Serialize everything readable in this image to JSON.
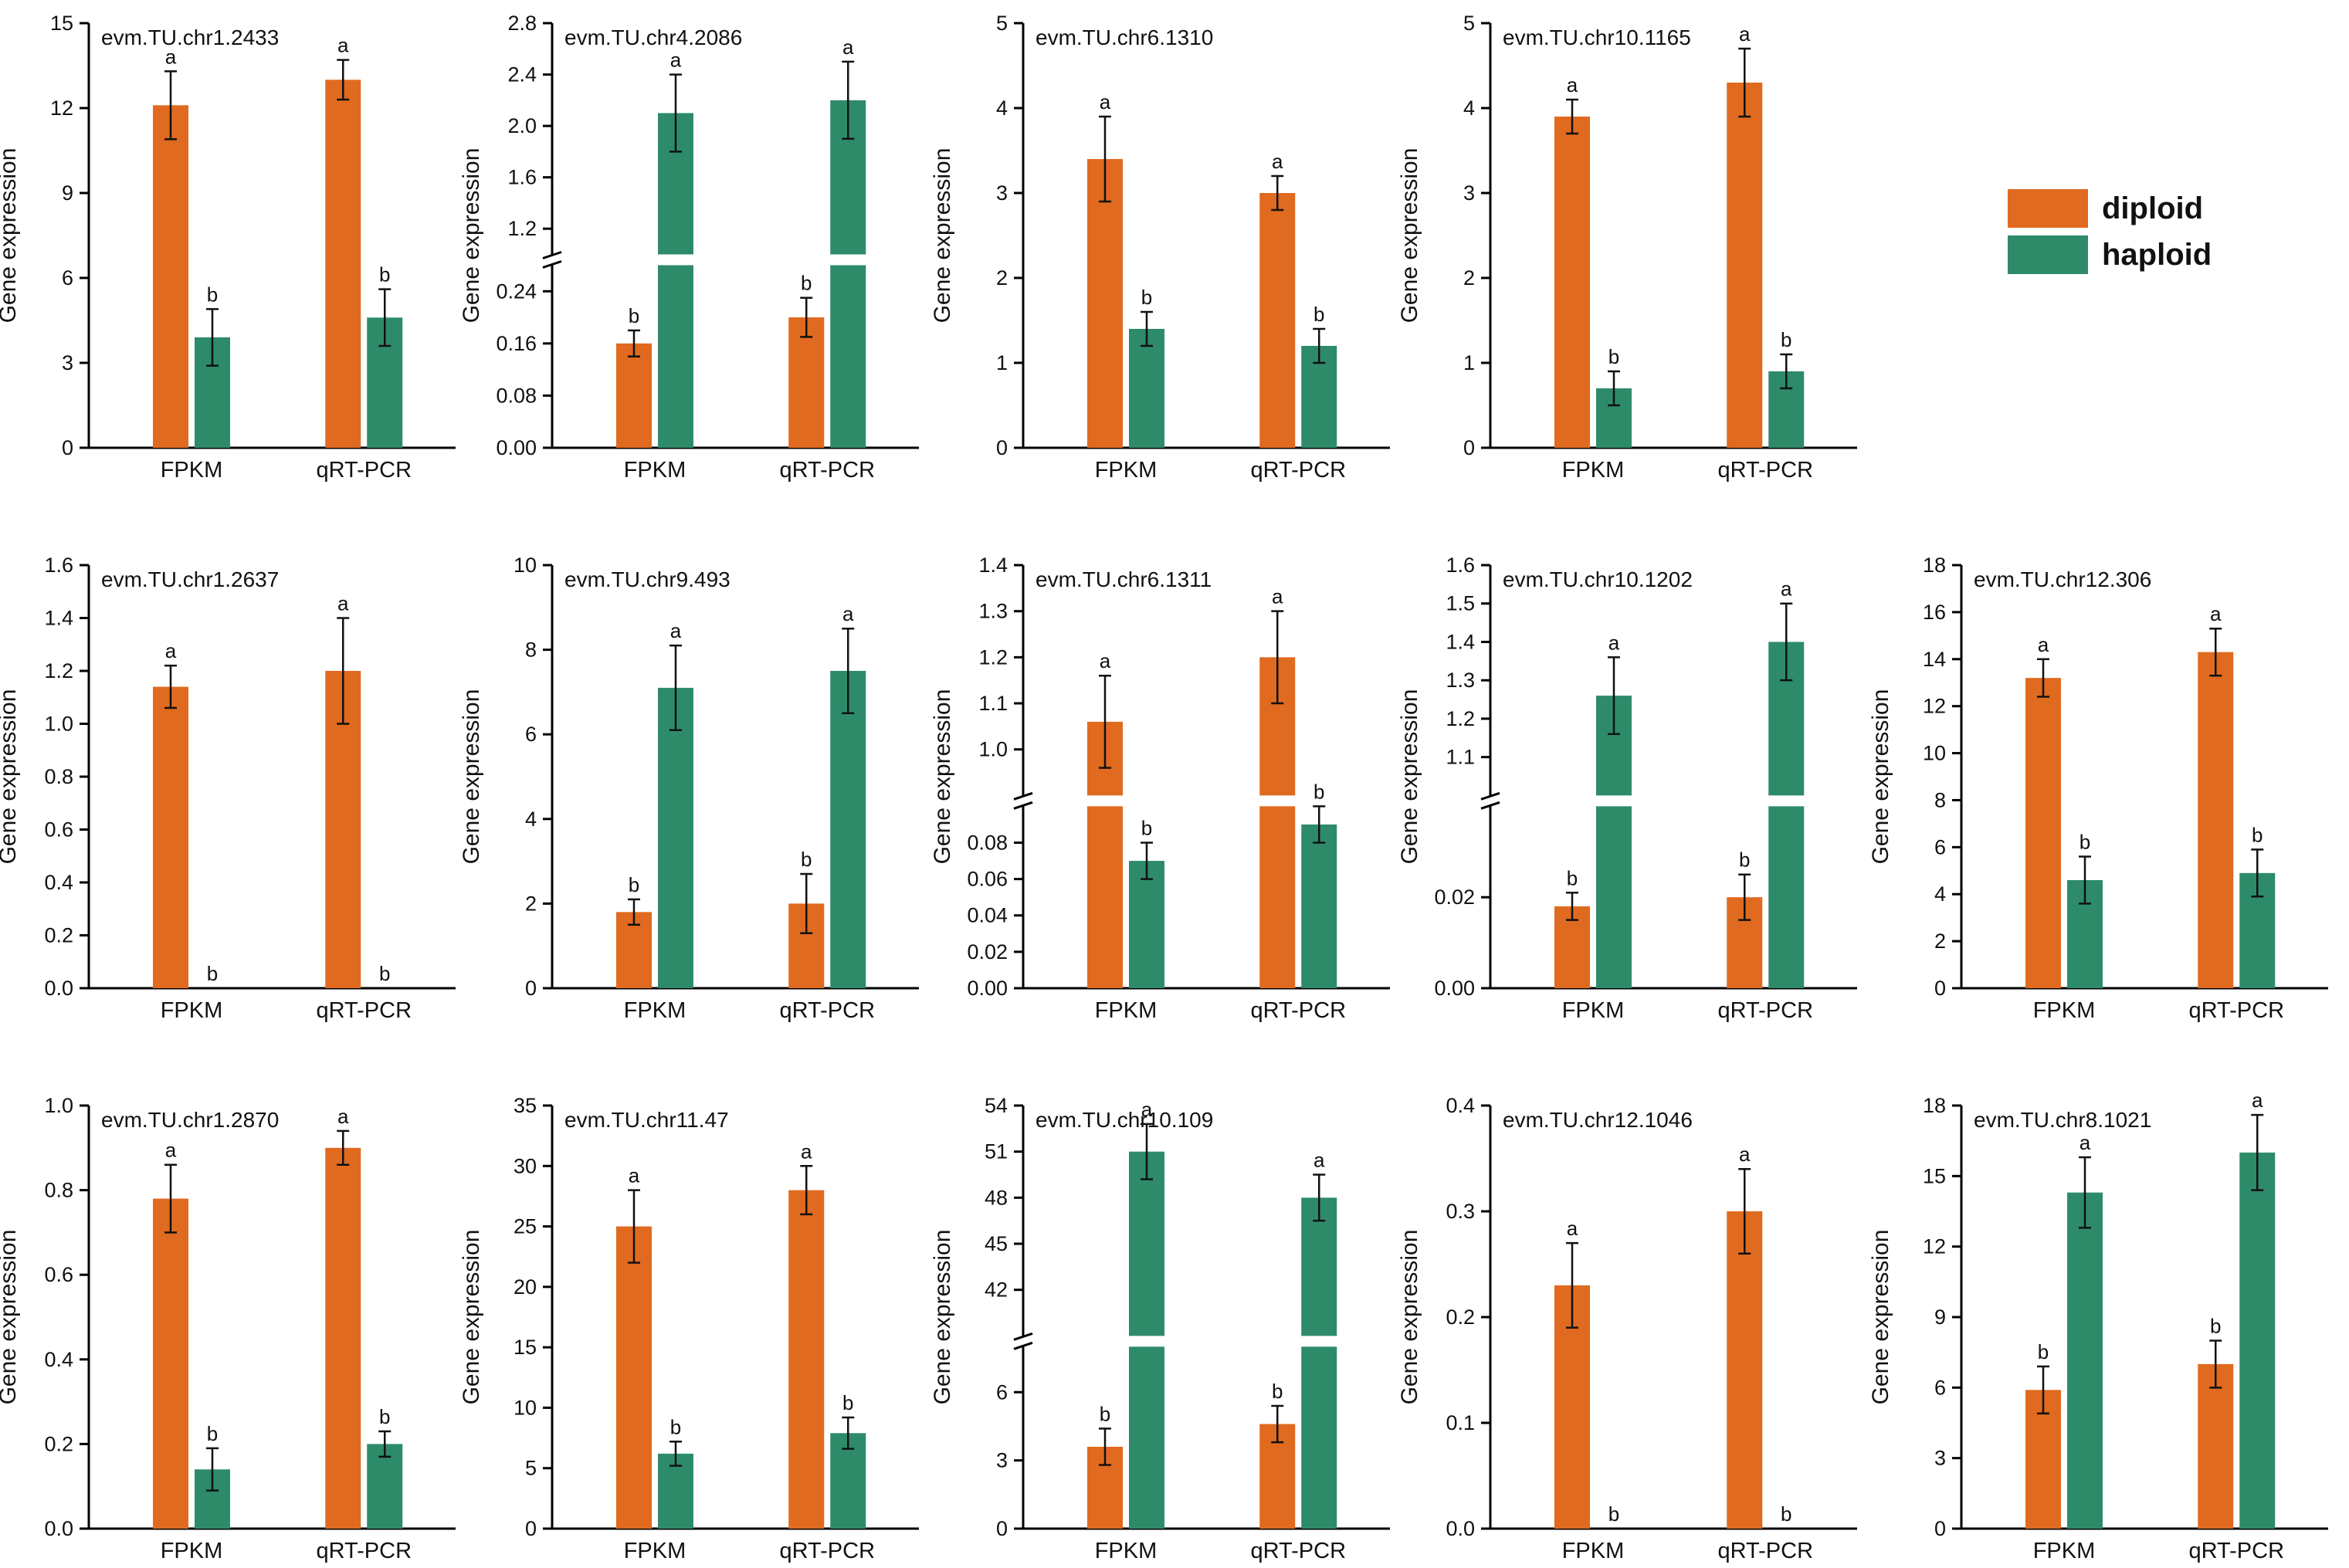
{
  "ylabel": "Gene expression",
  "categories": [
    "FPKM",
    "qRT-PCR"
  ],
  "legend": [
    {
      "key": "diploid",
      "label": "diploid",
      "color": "#E06A1F"
    },
    {
      "key": "haploid",
      "label": "haploid",
      "color": "#2E8B6A"
    }
  ],
  "chart_data": [
    {
      "type": "bar",
      "title": "evm.TU.chr1.2433",
      "ylabel": "Gene expression",
      "categories": [
        "FPKM",
        "qRT-PCR"
      ],
      "ylim": [
        0,
        15
      ],
      "yticks": [
        "0",
        "3",
        "6",
        "9",
        "12",
        "15"
      ],
      "series": [
        {
          "name": "diploid",
          "values": [
            12.1,
            13.0
          ],
          "errors": [
            1.2,
            0.7
          ],
          "letters": [
            "a",
            "a"
          ]
        },
        {
          "name": "haploid",
          "values": [
            3.9,
            4.6
          ],
          "errors": [
            1.0,
            1.0
          ],
          "letters": [
            "b",
            "b"
          ]
        }
      ]
    },
    {
      "type": "bar",
      "title": "evm.TU.chr4.2086",
      "ylabel": "Gene expression",
      "categories": [
        "FPKM",
        "qRT-PCR"
      ],
      "broken": {
        "lower_range": [
          0,
          0.28
        ],
        "lower_ticks": [
          "0.00",
          "0.08",
          "0.16",
          "0.24"
        ],
        "upper_range": [
          1.0,
          2.8
        ],
        "upper_ticks": [
          "1.2",
          "1.6",
          "2.0",
          "2.4",
          "2.8"
        ]
      },
      "series": [
        {
          "name": "diploid",
          "values": [
            0.16,
            0.2
          ],
          "errors": [
            0.02,
            0.03
          ],
          "letters": [
            "b",
            "b"
          ]
        },
        {
          "name": "haploid",
          "values": [
            2.1,
            2.2
          ],
          "errors": [
            0.3,
            0.3
          ],
          "letters": [
            "a",
            "a"
          ]
        }
      ]
    },
    {
      "type": "bar",
      "title": "evm.TU.chr6.1310",
      "ylabel": "Gene expression",
      "categories": [
        "FPKM",
        "qRT-PCR"
      ],
      "ylim": [
        0,
        5
      ],
      "yticks": [
        "0",
        "1",
        "2",
        "3",
        "4",
        "5"
      ],
      "series": [
        {
          "name": "diploid",
          "values": [
            3.4,
            3.0
          ],
          "errors": [
            0.5,
            0.2
          ],
          "letters": [
            "a",
            "a"
          ]
        },
        {
          "name": "haploid",
          "values": [
            1.4,
            1.2
          ],
          "errors": [
            0.2,
            0.2
          ],
          "letters": [
            "b",
            "b"
          ]
        }
      ]
    },
    {
      "type": "bar",
      "title": "evm.TU.chr10.1165",
      "ylabel": "Gene expression",
      "categories": [
        "FPKM",
        "qRT-PCR"
      ],
      "ylim": [
        0,
        5
      ],
      "yticks": [
        "0",
        "1",
        "2",
        "3",
        "4",
        "5"
      ],
      "series": [
        {
          "name": "diploid",
          "values": [
            3.9,
            4.3
          ],
          "errors": [
            0.2,
            0.4
          ],
          "letters": [
            "a",
            "a"
          ]
        },
        {
          "name": "haploid",
          "values": [
            0.7,
            0.9
          ],
          "errors": [
            0.2,
            0.2
          ],
          "letters": [
            "b",
            "b"
          ]
        }
      ]
    },
    {
      "type": "bar",
      "title": "evm.TU.chr1.2637",
      "ylabel": "Gene expression",
      "categories": [
        "FPKM",
        "qRT-PCR"
      ],
      "ylim": [
        0,
        1.6
      ],
      "yticks": [
        "0.0",
        "0.2",
        "0.4",
        "0.6",
        "0.8",
        "1.0",
        "1.2",
        "1.4",
        "1.6"
      ],
      "series": [
        {
          "name": "diploid",
          "values": [
            1.14,
            1.2
          ],
          "errors": [
            0.08,
            0.2
          ],
          "letters": [
            "a",
            "a"
          ]
        },
        {
          "name": "haploid",
          "values": [
            0,
            0
          ],
          "errors": [
            0,
            0
          ],
          "letters": [
            "b",
            "b"
          ]
        }
      ]
    },
    {
      "type": "bar",
      "title": "evm.TU.chr9.493",
      "ylabel": "Gene expression",
      "categories": [
        "FPKM",
        "qRT-PCR"
      ],
      "ylim": [
        0,
        10
      ],
      "yticks": [
        "0",
        "2",
        "4",
        "6",
        "8",
        "10"
      ],
      "series": [
        {
          "name": "diploid",
          "values": [
            1.8,
            2.0
          ],
          "errors": [
            0.3,
            0.7
          ],
          "letters": [
            "b",
            "b"
          ]
        },
        {
          "name": "haploid",
          "values": [
            7.1,
            7.5
          ],
          "errors": [
            1.0,
            1.0
          ],
          "letters": [
            "a",
            "a"
          ]
        }
      ]
    },
    {
      "type": "bar",
      "title": "evm.TU.chr6.1311",
      "ylabel": "Gene expression",
      "categories": [
        "FPKM",
        "qRT-PCR"
      ],
      "broken": {
        "lower_range": [
          0,
          0.1
        ],
        "lower_ticks": [
          "0.00",
          "0.02",
          "0.04",
          "0.06",
          "0.08"
        ],
        "upper_range": [
          0.9,
          1.4
        ],
        "upper_ticks": [
          "1.0",
          "1.1",
          "1.2",
          "1.3",
          "1.4"
        ]
      },
      "series": [
        {
          "name": "diploid",
          "values": [
            1.06,
            1.2
          ],
          "errors": [
            0.1,
            0.1
          ],
          "letters": [
            "a",
            "a"
          ]
        },
        {
          "name": "haploid",
          "values": [
            0.07,
            0.09
          ],
          "errors": [
            0.01,
            0.01
          ],
          "letters": [
            "b",
            "b"
          ]
        }
      ]
    },
    {
      "type": "bar",
      "title": "evm.TU.chr10.1202",
      "ylabel": "Gene expression",
      "categories": [
        "FPKM",
        "qRT-PCR"
      ],
      "broken": {
        "lower_range": [
          0,
          0.04
        ],
        "lower_ticks": [
          "0.00",
          "0.02"
        ],
        "upper_range": [
          1.0,
          1.6
        ],
        "upper_ticks": [
          "1.1",
          "1.2",
          "1.3",
          "1.4",
          "1.5",
          "1.6"
        ]
      },
      "series": [
        {
          "name": "diploid",
          "values": [
            0.018,
            0.02
          ],
          "errors": [
            0.003,
            0.005
          ],
          "letters": [
            "b",
            "b"
          ]
        },
        {
          "name": "haploid",
          "values": [
            1.26,
            1.4
          ],
          "errors": [
            0.1,
            0.1
          ],
          "letters": [
            "a",
            "a"
          ]
        }
      ]
    },
    {
      "type": "bar",
      "title": "evm.TU.chr12.306",
      "ylabel": "Gene expression",
      "categories": [
        "FPKM",
        "qRT-PCR"
      ],
      "ylim": [
        0,
        18
      ],
      "yticks": [
        "0",
        "2",
        "4",
        "6",
        "8",
        "10",
        "12",
        "14",
        "16",
        "18"
      ],
      "series": [
        {
          "name": "diploid",
          "values": [
            13.2,
            14.3
          ],
          "errors": [
            0.8,
            1.0
          ],
          "letters": [
            "a",
            "a"
          ]
        },
        {
          "name": "haploid",
          "values": [
            4.6,
            4.9
          ],
          "errors": [
            1.0,
            1.0
          ],
          "letters": [
            "b",
            "b"
          ]
        }
      ]
    },
    {
      "type": "bar",
      "title": "evm.TU.chr1.2870",
      "ylabel": "Gene expression",
      "categories": [
        "FPKM",
        "qRT-PCR"
      ],
      "ylim": [
        0,
        1.0
      ],
      "yticks": [
        "0.0",
        "0.2",
        "0.4",
        "0.6",
        "0.8",
        "1.0"
      ],
      "series": [
        {
          "name": "diploid",
          "values": [
            0.78,
            0.9
          ],
          "errors": [
            0.08,
            0.04
          ],
          "letters": [
            "a",
            "a"
          ]
        },
        {
          "name": "haploid",
          "values": [
            0.14,
            0.2
          ],
          "errors": [
            0.05,
            0.03
          ],
          "letters": [
            "b",
            "b"
          ]
        }
      ]
    },
    {
      "type": "bar",
      "title": "evm.TU.chr11.47",
      "ylabel": "Gene expression",
      "categories": [
        "FPKM",
        "qRT-PCR"
      ],
      "ylim": [
        0,
        35
      ],
      "yticks": [
        "0",
        "5",
        "10",
        "15",
        "20",
        "25",
        "30",
        "35"
      ],
      "series": [
        {
          "name": "diploid",
          "values": [
            25,
            28
          ],
          "errors": [
            3,
            2
          ],
          "letters": [
            "a",
            "a"
          ]
        },
        {
          "name": "haploid",
          "values": [
            6.2,
            7.9
          ],
          "errors": [
            1.0,
            1.3
          ],
          "letters": [
            "b",
            "b"
          ]
        }
      ]
    },
    {
      "type": "bar",
      "title": "evm.TU.chr10.109",
      "ylabel": "Gene expression",
      "categories": [
        "FPKM",
        "qRT-PCR"
      ],
      "broken": {
        "lower_range": [
          0,
          8
        ],
        "lower_ticks": [
          "0",
          "3",
          "6"
        ],
        "upper_range": [
          39,
          54
        ],
        "upper_ticks": [
          "42",
          "45",
          "48",
          "51",
          "54"
        ]
      },
      "series": [
        {
          "name": "diploid",
          "values": [
            3.6,
            4.6
          ],
          "errors": [
            0.8,
            0.8
          ],
          "letters": [
            "b",
            "b"
          ]
        },
        {
          "name": "haploid",
          "values": [
            51,
            48
          ],
          "errors": [
            1.8,
            1.5
          ],
          "letters": [
            "a",
            "a"
          ]
        }
      ]
    },
    {
      "type": "bar",
      "title": "evm.TU.chr12.1046",
      "ylabel": "Gene expression",
      "categories": [
        "FPKM",
        "qRT-PCR"
      ],
      "ylim": [
        0,
        0.4
      ],
      "yticks": [
        "0.0",
        "0.1",
        "0.2",
        "0.3",
        "0.4"
      ],
      "series": [
        {
          "name": "diploid",
          "values": [
            0.23,
            0.3
          ],
          "errors": [
            0.04,
            0.04
          ],
          "letters": [
            "a",
            "a"
          ]
        },
        {
          "name": "haploid",
          "values": [
            0,
            0
          ],
          "errors": [
            0,
            0
          ],
          "letters": [
            "b",
            "b"
          ]
        }
      ]
    },
    {
      "type": "bar",
      "title": "evm.TU.chr8.1021",
      "ylabel": "Gene expression",
      "categories": [
        "FPKM",
        "qRT-PCR"
      ],
      "ylim": [
        0,
        18
      ],
      "yticks": [
        "0",
        "3",
        "6",
        "9",
        "12",
        "15",
        "18"
      ],
      "series": [
        {
          "name": "diploid",
          "values": [
            5.9,
            7.0
          ],
          "errors": [
            1.0,
            1.0
          ],
          "letters": [
            "b",
            "b"
          ]
        },
        {
          "name": "haploid",
          "values": [
            14.3,
            16.0
          ],
          "errors": [
            1.5,
            1.6
          ],
          "letters": [
            "a",
            "a"
          ]
        }
      ]
    }
  ]
}
